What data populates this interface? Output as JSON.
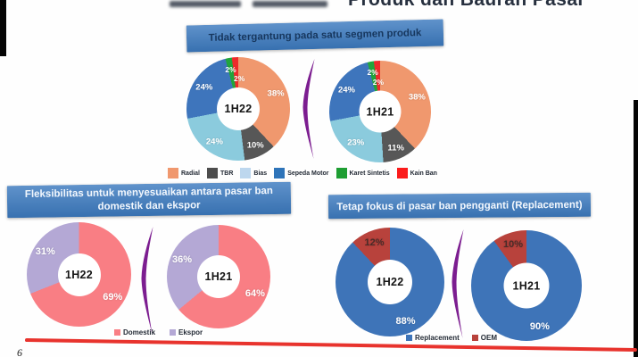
{
  "slide": {
    "title_visible": "Produk dan Bauran Pasar",
    "page_number": "6"
  },
  "banners": {
    "segment": {
      "text": "Tidak tergantung pada satu segmen produk",
      "bg": "#3C7ABF",
      "text_color": "#17375E"
    },
    "flexibility": {
      "text": "Fleksibilitas untuk menyesuaikan antara pasar ban domestik dan ekspor",
      "bg": "#3C7ABF",
      "text_color": "#F2F7FD"
    },
    "replacement": {
      "text": "Tetap fokus di pasar ban pengganti (Replacement)",
      "bg": "#3C7ABF",
      "text_color": "#F2F7FD"
    }
  },
  "decor": {
    "arrow_color": "#7C1D90",
    "underline_color": "#E8332D",
    "edge_bar_color": "#050505"
  },
  "chart_data": [
    {
      "type": "donut",
      "group": "product-mix",
      "group_title": "Tidak tergantung pada satu segmen produk",
      "center_label": "1H22",
      "label_font_px": 9.5,
      "segments": [
        {
          "label": "Radial",
          "value": 38,
          "color": "#F0986E"
        },
        {
          "label": "TBR",
          "value": 10,
          "color": "#575757"
        },
        {
          "label": "Bias",
          "value": 24,
          "color": "#8BCBDD"
        },
        {
          "label": "Sepeda Motor",
          "value": 24,
          "color": "#3E75BC"
        },
        {
          "label": "Karet Sintetis",
          "value": 2,
          "color": "#21A53C"
        },
        {
          "label": "Kain Ban",
          "value": 2,
          "color": "#ED2B2B",
          "label_angle": 2,
          "label_radius": 0.58
        }
      ]
    },
    {
      "type": "donut",
      "group": "product-mix",
      "group_title": "Tidak tergantung pada satu segmen produk",
      "center_label": "1H21",
      "label_font_px": 9.5,
      "segments": [
        {
          "label": "Radial",
          "value": 38,
          "color": "#F0986E"
        },
        {
          "label": "TBR",
          "value": 11,
          "color": "#575757"
        },
        {
          "label": "Bias",
          "value": 23,
          "color": "#8BCBDD"
        },
        {
          "label": "Sepeda Motor",
          "value": 24,
          "color": "#3E75BC"
        },
        {
          "label": "Karet Sintetis",
          "value": 2,
          "color": "#21A53C"
        },
        {
          "label": "Kain Ban",
          "value": 2,
          "color": "#ED2B2B",
          "label_radius": 0.58
        }
      ]
    },
    {
      "type": "donut",
      "group": "domestic-export",
      "group_title": "Fleksibilitas untuk menyesuaikan antara pasar ban domestik dan ekspor",
      "center_label": "1H22",
      "label_font_px": 11,
      "segments": [
        {
          "label": "Domestik",
          "value": 69,
          "color": "#F97E84"
        },
        {
          "label": "Ekspor",
          "value": 31,
          "color": "#B4A8D5"
        }
      ]
    },
    {
      "type": "donut",
      "group": "domestic-export",
      "group_title": "Fleksibilitas untuk menyesuaikan antara pasar ban domestik dan ekspor",
      "center_label": "1H21",
      "label_font_px": 11,
      "segments": [
        {
          "label": "Domestik",
          "value": 64,
          "color": "#F97E84"
        },
        {
          "label": "Ekspor",
          "value": 36,
          "color": "#B4A8D5"
        }
      ]
    },
    {
      "type": "donut",
      "group": "replacement-oem",
      "group_title": "Tetap fokus di pasar ban pengganti (Replacement)",
      "center_label": "1H22",
      "label_font_px": 11,
      "segments": [
        {
          "label": "Replacement",
          "value": 88,
          "color": "#3E74B8"
        },
        {
          "label": "OEM",
          "value": 12,
          "color": "#B8423C",
          "label_color": "#4A2B28"
        }
      ]
    },
    {
      "type": "donut",
      "group": "replacement-oem",
      "group_title": "Tetap fokus di pasar ban pengganti (Replacement)",
      "center_label": "1H21",
      "label_font_px": 11,
      "segments": [
        {
          "label": "Replacement",
          "value": 90,
          "color": "#3E74B8"
        },
        {
          "label": "OEM",
          "value": 10,
          "color": "#B8423C",
          "label_color": "#4A2B28"
        }
      ]
    }
  ],
  "legends": {
    "product": {
      "items": [
        {
          "label": "Radial",
          "color": "#F0986E"
        },
        {
          "label": "TBR",
          "color": "#4D4D4D"
        },
        {
          "label": "Bias",
          "color": "#BDD7EE"
        },
        {
          "label": "Sepeda Motor",
          "color": "#2E74B9"
        },
        {
          "label": "Karet Sintetis",
          "color": "#1E9E33"
        },
        {
          "label": "Kain Ban",
          "color": "#FB1B1B"
        }
      ]
    },
    "market": {
      "items": [
        {
          "label": "Domestik",
          "color": "#F97E84"
        },
        {
          "label": "Ekspor",
          "color": "#B4A8D5"
        }
      ]
    },
    "channel": {
      "items": [
        {
          "label": "Replacement",
          "color": "#3E74B8"
        },
        {
          "label": "OEM",
          "color": "#B8423C"
        }
      ]
    }
  }
}
